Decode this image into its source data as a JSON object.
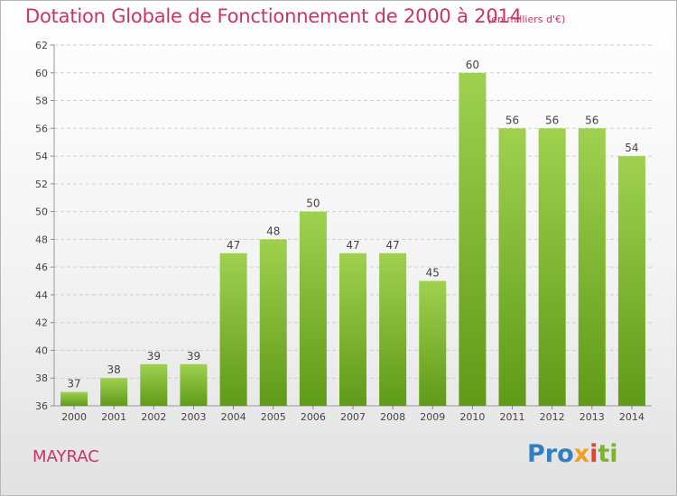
{
  "title": "Dotation Globale de Fonctionnement de 2000 à 2014",
  "unit_note": "(en milliers d'€)",
  "commune": "MAYRAC",
  "logo": {
    "text": "Proxiti",
    "parts": [
      "Pro",
      "x",
      "i",
      "ti"
    ],
    "colors": [
      "#2f7fc1",
      "#f0a020",
      "#e2432e",
      "#7bb52c"
    ]
  },
  "colors": {
    "title": "#cc3366",
    "bar_top": "#9fd14f",
    "bar_bottom": "#5f9a18",
    "grid": "#d0d0d0"
  },
  "chart_data": {
    "type": "bar",
    "title": "Dotation Globale de Fonctionnement de 2000 à 2014",
    "subtitle": "(en milliers d'€)",
    "xlabel": "",
    "ylabel": "",
    "categories": [
      "2000",
      "2001",
      "2002",
      "2003",
      "2004",
      "2005",
      "2006",
      "2007",
      "2008",
      "2009",
      "2010",
      "2011",
      "2012",
      "2013",
      "2014"
    ],
    "values": [
      37,
      38,
      39,
      39,
      47,
      48,
      50,
      47,
      47,
      45,
      60,
      56,
      56,
      56,
      54
    ],
    "ylim": [
      36,
      62
    ],
    "yticks": [
      36,
      38,
      40,
      42,
      44,
      46,
      48,
      50,
      52,
      54,
      56,
      58,
      60,
      62
    ],
    "grid": true,
    "data_labels": true
  }
}
